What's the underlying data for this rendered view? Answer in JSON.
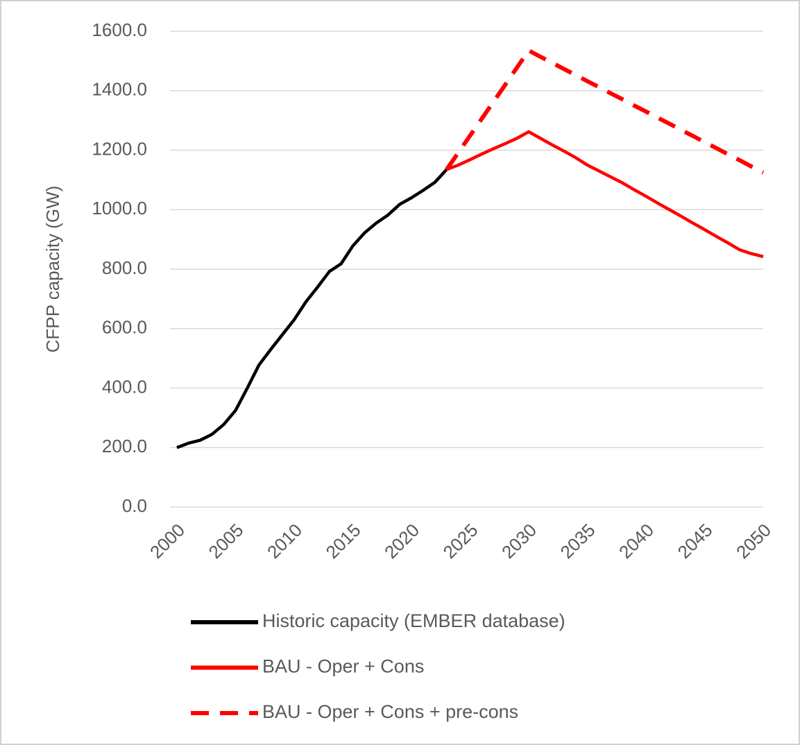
{
  "chart_data": {
    "type": "line",
    "ylabel": "CFPP capacity (GW)",
    "x": [
      2000,
      2001,
      2002,
      2003,
      2004,
      2005,
      2006,
      2007,
      2008,
      2009,
      2010,
      2011,
      2012,
      2013,
      2014,
      2015,
      2016,
      2017,
      2018,
      2019,
      2020,
      2021,
      2022,
      2023,
      2024,
      2025,
      2026,
      2027,
      2028,
      2029,
      2030,
      2031,
      2032,
      2033,
      2034,
      2035,
      2036,
      2037,
      2038,
      2039,
      2040,
      2041,
      2042,
      2043,
      2044,
      2045,
      2046,
      2047,
      2048,
      2049,
      2050
    ],
    "series": [
      {
        "name": "Historic capacity (EMBER database)",
        "color": "#000000",
        "dash": false,
        "values": [
          200,
          215,
          225,
          245,
          278,
          325,
          400,
          478,
          530,
          580,
          630,
          690,
          740,
          792,
          818,
          878,
          922,
          955,
          982,
          1018,
          1040,
          1065,
          1092,
          1135,
          null,
          null,
          null,
          null,
          null,
          null,
          null,
          null,
          null,
          null,
          null,
          null,
          null,
          null,
          null,
          null,
          null,
          null,
          null,
          null,
          null,
          null,
          null,
          null,
          null,
          null,
          null
        ]
      },
      {
        "name": "BAU - Oper + Cons",
        "color": "#ff0000",
        "dash": false,
        "values": [
          null,
          null,
          null,
          null,
          null,
          null,
          null,
          null,
          null,
          null,
          null,
          null,
          null,
          null,
          null,
          null,
          null,
          null,
          null,
          null,
          null,
          null,
          null,
          1135,
          1150,
          1168,
          1187,
          1205,
          1222,
          1240,
          1262,
          1240,
          1218,
          1197,
          1175,
          1150,
          1130,
          1110,
          1090,
          1067,
          1045,
          1022,
          1000,
          978,
          955,
          933,
          910,
          888,
          865,
          852,
          842
        ]
      },
      {
        "name": "BAU - Oper + Cons + pre-cons",
        "color": "#ff0000",
        "dash": true,
        "values": [
          null,
          null,
          null,
          null,
          null,
          null,
          null,
          null,
          null,
          null,
          null,
          null,
          null,
          null,
          null,
          null,
          null,
          null,
          null,
          null,
          null,
          null,
          null,
          1135,
          1192,
          1249,
          1306,
          1363,
          1420,
          1478,
          1535,
          1514,
          1494,
          1473,
          1453,
          1432,
          1412,
          1391,
          1371,
          1350,
          1330,
          1309,
          1289,
          1268,
          1248,
          1227,
          1207,
          1186,
          1166,
          1145,
          1125
        ]
      }
    ],
    "xlim": [
      2000,
      2050
    ],
    "xticks": [
      2000,
      2005,
      2010,
      2015,
      2020,
      2025,
      2030,
      2035,
      2040,
      2045,
      2050
    ],
    "ylim": [
      0,
      1600
    ],
    "yticks": [
      {
        "value": 0,
        "label": "0.0"
      },
      {
        "value": 200,
        "label": "200.0"
      },
      {
        "value": 400,
        "label": "400.0"
      },
      {
        "value": 600,
        "label": "600.0"
      },
      {
        "value": 800,
        "label": "800.0"
      },
      {
        "value": 1000,
        "label": "1000.0"
      },
      {
        "value": 1200,
        "label": "1200.0"
      },
      {
        "value": 1400,
        "label": "1400.0"
      },
      {
        "value": 1600,
        "label": "1600.0"
      }
    ],
    "grid": true,
    "legend": "bottom"
  }
}
